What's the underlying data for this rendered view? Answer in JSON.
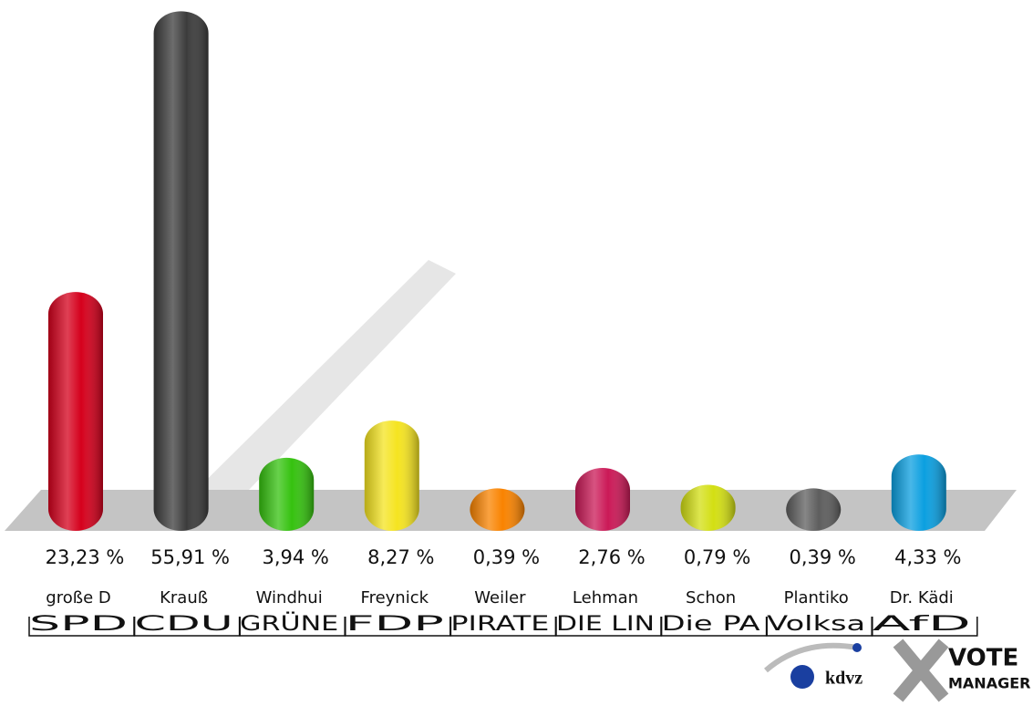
{
  "chart_data": {
    "type": "bar",
    "categories": [
      "SPD",
      "CDU",
      "GRÜNE",
      "FDP",
      "PIRATE",
      "DIE LIN",
      "Die PA",
      "Volksa",
      "AfD"
    ],
    "candidates": [
      "große D",
      "Krauß",
      "Windhui",
      "Freynick",
      "Weiler",
      "Lehman",
      "Schon",
      "Plantiko",
      "Dr. Kädi"
    ],
    "values": [
      23.23,
      55.91,
      3.94,
      8.27,
      0.39,
      2.76,
      0.79,
      0.39,
      4.33
    ],
    "value_labels": [
      "23,23 %",
      "55,91 %",
      "3,94 %",
      "8,27 %",
      "0,39 %",
      "2,76 %",
      "0,79 %",
      "0,39 %",
      "4,33 %"
    ],
    "colors": [
      "#d5001c",
      "#3c3c3c",
      "#35c20f",
      "#f5e420",
      "#f98300",
      "#cb1957",
      "#d3df13",
      "#5e5e5e",
      "#0b9fe0"
    ]
  },
  "logos": [
    "kdvz",
    "VOTE",
    "MANAGER"
  ]
}
